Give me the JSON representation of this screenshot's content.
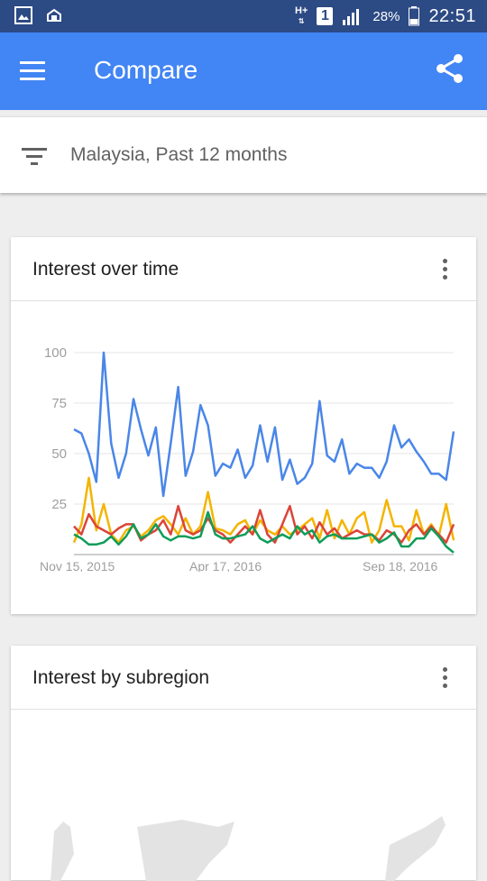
{
  "status_bar": {
    "network_type": "H+",
    "sim_slot": "1",
    "battery": "28%",
    "time": "22:51",
    "icons": [
      "gallery-icon",
      "cloud-icon",
      "signal-icon",
      "battery-icon"
    ]
  },
  "app_bar": {
    "title": "Compare",
    "icons": [
      "menu-icon",
      "share-icon"
    ],
    "color": "#4285f4"
  },
  "filter": {
    "text": "Malaysia, Past 12 months",
    "icon": "filter-icon"
  },
  "cards": {
    "interest_over_time": {
      "title": "Interest over time",
      "menu_icon": "more-vert-icon"
    },
    "interest_by_subregion": {
      "title": "Interest by subregion",
      "menu_icon": "more-vert-icon"
    }
  },
  "chart_data": {
    "type": "line",
    "title": "Interest over time",
    "x_labels": [
      "Nov 15, 2015",
      "Apr 17, 2016",
      "Sep 18, 2016"
    ],
    "y_ticks": [
      25,
      50,
      75,
      100
    ],
    "ylim": [
      0,
      100
    ],
    "grid": true,
    "series": [
      {
        "color": "#4a86e8",
        "values": [
          62,
          60,
          50,
          36,
          100,
          55,
          38,
          50,
          77,
          62,
          49,
          63,
          29,
          55,
          83,
          39,
          51,
          74,
          64,
          39,
          45,
          43,
          52,
          38,
          44,
          64,
          46,
          63,
          37,
          47,
          35,
          38,
          45,
          76,
          49,
          46,
          57,
          40,
          45,
          43,
          43,
          38,
          46,
          64,
          53,
          57,
          51,
          46,
          40,
          40,
          37,
          61
        ]
      },
      {
        "color": "#f4b400",
        "values": [
          6,
          15,
          38,
          12,
          25,
          10,
          6,
          12,
          14,
          9,
          12,
          17,
          19,
          15,
          10,
          18,
          10,
          14,
          31,
          13,
          12,
          10,
          15,
          17,
          10,
          17,
          12,
          10,
          14,
          10,
          12,
          15,
          18,
          8,
          22,
          8,
          17,
          10,
          18,
          21,
          6,
          12,
          27,
          14,
          14,
          7,
          22,
          10,
          15,
          9,
          25,
          7
        ]
      },
      {
        "color": "#db4437",
        "values": [
          14,
          10,
          20,
          14,
          12,
          10,
          13,
          15,
          15,
          7,
          10,
          12,
          17,
          10,
          24,
          12,
          10,
          12,
          18,
          12,
          10,
          6,
          10,
          14,
          10,
          22,
          10,
          6,
          15,
          24,
          10,
          14,
          8,
          16,
          10,
          13,
          8,
          10,
          12,
          10,
          10,
          7,
          12,
          10,
          6,
          12,
          15,
          10,
          14,
          10,
          6,
          15
        ]
      },
      {
        "color": "#0f9d58",
        "values": [
          10,
          8,
          5,
          5,
          6,
          9,
          5,
          9,
          15,
          8,
          10,
          15,
          9,
          7,
          9,
          9,
          8,
          9,
          21,
          10,
          8,
          8,
          9,
          10,
          14,
          8,
          6,
          8,
          10,
          8,
          14,
          10,
          12,
          6,
          9,
          10,
          8,
          8,
          8,
          9,
          10,
          6,
          8,
          11,
          4,
          4,
          8,
          8,
          13,
          9,
          4,
          1
        ]
      }
    ]
  }
}
